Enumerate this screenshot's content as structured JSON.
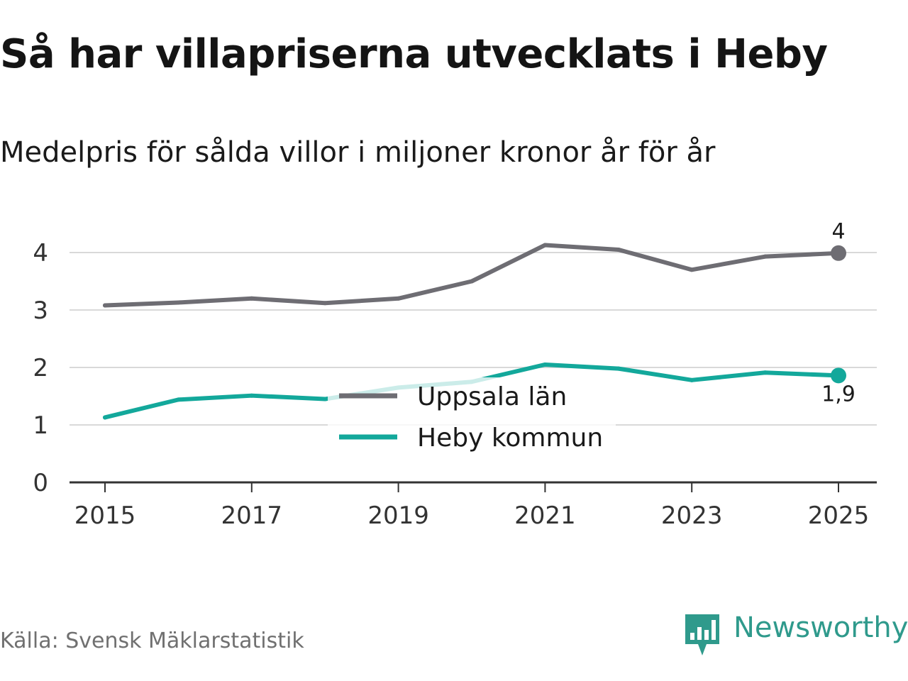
{
  "title": "Så har villapriserna utvecklats i Heby",
  "subtitle": "Medelpris för sålda villor i miljoner kronor år för år",
  "source": "Källa: Svensk Mäklarstatistik",
  "brand": "Newsworthy",
  "colors": {
    "uppsala": "#6e6d73",
    "heby": "#13a89b",
    "grid": "#d9d9d9",
    "axis": "#333333",
    "brand": "#2f9a8c"
  },
  "chart_data": {
    "type": "line",
    "title": "Så har villapriserna utvecklats i Heby",
    "subtitle": "Medelpris för sålda villor i miljoner kronor år för år",
    "x": [
      2015,
      2016,
      2017,
      2018,
      2019,
      2020,
      2021,
      2022,
      2023,
      2024,
      2025
    ],
    "x_ticks": [
      "2015",
      "2017",
      "2019",
      "2021",
      "2023",
      "2025"
    ],
    "y_ticks": [
      "0",
      "1",
      "2",
      "3",
      "4"
    ],
    "ylim": [
      0,
      4.5
    ],
    "grid": true,
    "legend_position": "center",
    "series": [
      {
        "name": "Uppsala län",
        "key": "uppsala",
        "values": [
          3.08,
          3.13,
          3.2,
          3.12,
          3.2,
          3.5,
          4.13,
          4.05,
          3.7,
          3.93,
          3.99
        ],
        "end_label": "4"
      },
      {
        "name": "Heby kommun",
        "key": "heby",
        "values": [
          1.13,
          1.44,
          1.51,
          1.45,
          1.65,
          1.75,
          2.05,
          1.98,
          1.78,
          1.91,
          1.86
        ],
        "end_label": "1,9"
      }
    ]
  }
}
